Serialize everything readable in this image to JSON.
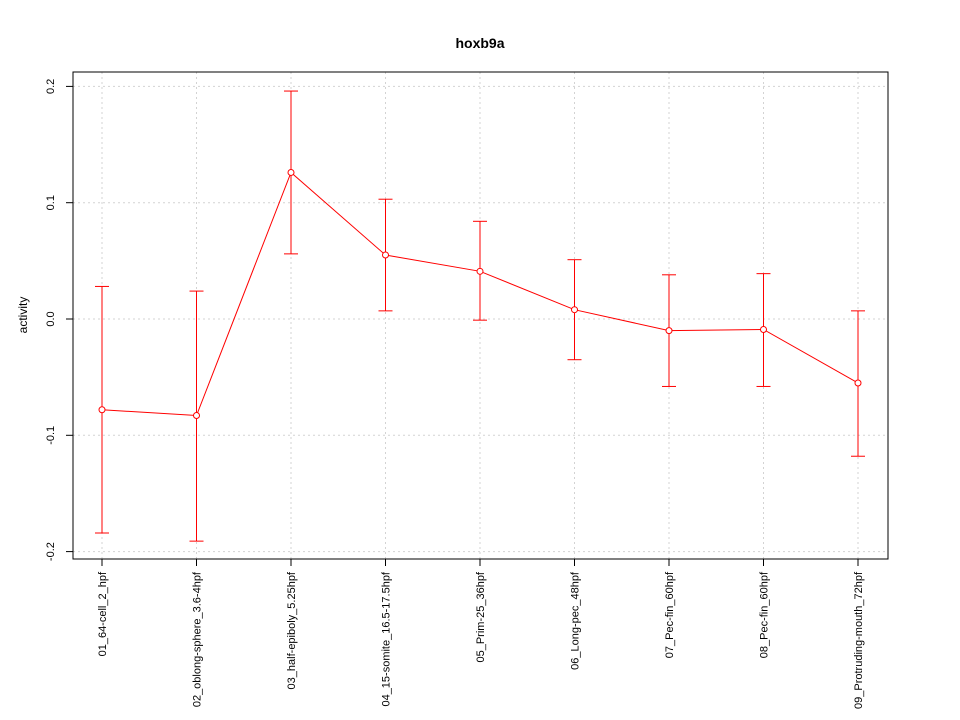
{
  "chart_data": {
    "type": "line",
    "title": "hoxb9a",
    "xlabel": "",
    "ylabel": "activity",
    "ylim": [
      -0.205,
      0.21
    ],
    "yticks": [
      -0.2,
      -0.1,
      0.0,
      0.1,
      0.2
    ],
    "ytick_labels": [
      "-0.2",
      "-0.1",
      "0.0",
      "0.1",
      "0.2"
    ],
    "grid": true,
    "categories": [
      "01_64-cell_2_hpf",
      "02_oblong-sphere_3.6-4hpf",
      "03_half-epiboly_5.25hpf",
      "04_15-somite_16.5-17.5hpf",
      "05_Prim-25_36hpf",
      "06_Long-pec_48hpf",
      "07_Pec-fin_60hpf",
      "08_Pec-fin_60hpf",
      "09_Protruding-mouth_72hpf"
    ],
    "series": [
      {
        "color": "#ff0000",
        "values": [
          -0.078,
          -0.083,
          0.126,
          0.055,
          0.041,
          0.008,
          -0.01,
          -0.009,
          -0.055
        ],
        "lower": [
          -0.184,
          -0.191,
          0.056,
          0.007,
          -0.001,
          -0.035,
          -0.058,
          -0.058,
          -0.118
        ],
        "upper": [
          0.028,
          0.024,
          0.196,
          0.103,
          0.084,
          0.051,
          0.038,
          0.039,
          0.007
        ]
      }
    ]
  }
}
